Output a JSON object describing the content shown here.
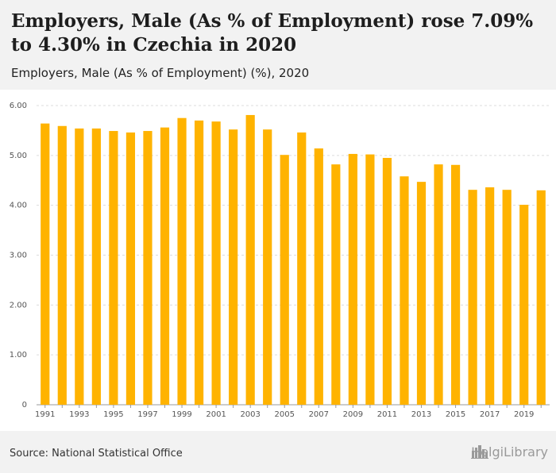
{
  "header": {
    "title": "Employers, Male (As % of Employment) rose 7.09% to 4.30% in Czechia in 2020",
    "subtitle": "Employers, Male (As % of Employment) (%), 2020"
  },
  "footer": {
    "source": "Source: National Statistical Office",
    "brand": "HelgiLibrary"
  },
  "icons": {
    "logo": "city-skyline-icon"
  },
  "colors": {
    "bar": "#FFB300",
    "grid": "#dcdcdc",
    "axis": "#999999"
  },
  "chart_data": {
    "type": "bar",
    "title": "Employers, Male (As % of Employment) (%), 2020",
    "xlabel": "",
    "ylabel": "",
    "ylim": [
      0,
      6
    ],
    "y_ticks": [
      0,
      1,
      2,
      3,
      4,
      5,
      6
    ],
    "y_tick_labels": [
      "0",
      "1.00",
      "2.00",
      "3.00",
      "4.00",
      "5.00",
      "6.00"
    ],
    "categories": [
      "1991",
      "1992",
      "1993",
      "1994",
      "1995",
      "1996",
      "1997",
      "1998",
      "1999",
      "2000",
      "2001",
      "2002",
      "2003",
      "2004",
      "2005",
      "2006",
      "2007",
      "2008",
      "2009",
      "2010",
      "2011",
      "2012",
      "2013",
      "2014",
      "2015",
      "2016",
      "2017",
      "2018",
      "2019",
      "2020"
    ],
    "x_tick_labels": [
      "1991",
      "",
      "1993",
      "",
      "1995",
      "",
      "1997",
      "",
      "1999",
      "",
      "2001",
      "",
      "2003",
      "",
      "2005",
      "",
      "2007",
      "",
      "2009",
      "",
      "2011",
      "",
      "2013",
      "",
      "2015",
      "",
      "2017",
      "",
      "2019",
      ""
    ],
    "series": [
      {
        "name": "Employers, Male (As % of Employment) (%)",
        "values": [
          5.64,
          5.59,
          5.54,
          5.54,
          5.49,
          5.46,
          5.49,
          5.56,
          5.75,
          5.7,
          5.68,
          5.52,
          5.81,
          5.52,
          5.01,
          5.46,
          5.14,
          4.82,
          5.03,
          5.02,
          4.95,
          4.58,
          4.47,
          4.82,
          4.81,
          4.31,
          4.36,
          4.31,
          4.01,
          4.3
        ]
      }
    ]
  }
}
